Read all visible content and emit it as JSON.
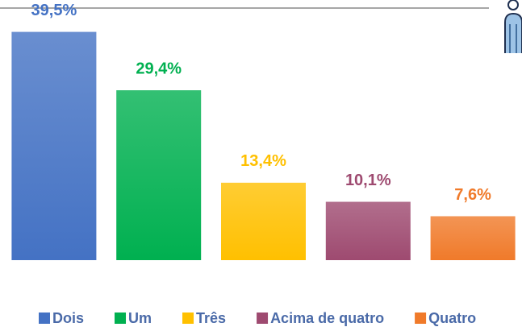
{
  "chart_data": {
    "type": "bar",
    "categories": [
      "Dois",
      "Um",
      "Três",
      "Acima de quatro",
      "Quatro"
    ],
    "values": [
      39.5,
      29.4,
      13.4,
      10.1,
      7.6
    ],
    "value_labels": [
      "39,5%",
      "29,4%",
      "13,4%",
      "10,1%",
      "7,6%"
    ],
    "colors": [
      "#4472c4",
      "#00b050",
      "#ffc000",
      "#9e4a70",
      "#f07a2a"
    ],
    "ylim": [
      0,
      40
    ],
    "grid": false,
    "legend": "bottom"
  }
}
